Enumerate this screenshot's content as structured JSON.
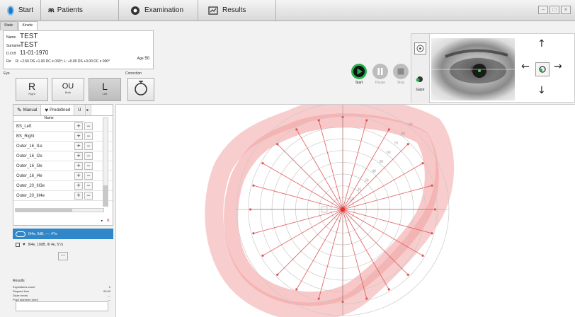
{
  "top_tabs": [
    {
      "label": "Start",
      "icon": "app-logo-icon"
    },
    {
      "label": "Patients",
      "icon": "patients-icon"
    },
    {
      "label": "Examination",
      "icon": "examination-icon"
    },
    {
      "label": "Results",
      "icon": "results-icon"
    }
  ],
  "sub_tabs": [
    "Static",
    "Kinetic"
  ],
  "patient": {
    "name_label": "Name",
    "name": "TEST",
    "surname_label": "Surname",
    "surname": "TEST",
    "dob_label": "D.O.B",
    "dob": "11-01-1970",
    "age_label": "Age",
    "age": "50",
    "rx_label": "Rx:",
    "rx": "R: +2.50 DS +1.00 DC x 030°; L: +0.00 DS +0.00 DC x 000°"
  },
  "section_labels": {
    "eye": "Eye",
    "correction": "Correction"
  },
  "eye_buttons": [
    {
      "letter": "R",
      "label": "Right"
    },
    {
      "letter": "OU",
      "label": "Both"
    },
    {
      "letter": "L",
      "label": "Left",
      "selected": true
    }
  ],
  "controls": {
    "start": "Start",
    "pause": "Pause",
    "stop": "Stop"
  },
  "camera_side": {
    "gaze": "Gaze"
  },
  "left_tabs": {
    "manual": "Manual",
    "predefined": "Predefined",
    "extra": "U"
  },
  "list_header": "Name",
  "programs": [
    "BS_Left",
    "BS_Right",
    "Outer_16_I1e",
    "Outer_16_I2e",
    "Outer_16_I3e",
    "Outer_16_I4e",
    "Outer_20_III3e",
    "Outer_20_III4e"
  ],
  "selected_program": "III4e, 0dB, —, 4°/s",
  "second_program": "III4e, 10dB, III 4e, 5°/s",
  "more_button": "⋯",
  "results": {
    "title": "Results",
    "rows": [
      {
        "label": "Expositions count",
        "value": "0"
      },
      {
        "label": "Elapsed time",
        "value": "00:00"
      },
      {
        "label": "Gaze errors",
        "value": "—"
      },
      {
        "label": "Pupil diameter [mm]",
        "value": "—"
      }
    ]
  },
  "colors": {
    "accent": "#2f86c8",
    "start_green": "#22b14c",
    "isopter": "#f3a4a4",
    "meridian": "#e05050"
  },
  "chart_data": {
    "type": "polar-isopter",
    "ring_labels": [
      "10",
      "20",
      "30",
      "40",
      "50",
      "60",
      "70",
      "80",
      "90"
    ],
    "meridian_step_deg": 15
  }
}
